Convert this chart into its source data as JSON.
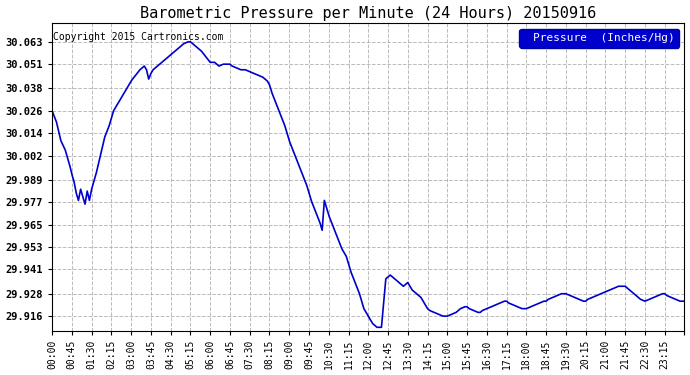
{
  "title": "Barometric Pressure per Minute (24 Hours) 20150916",
  "copyright": "Copyright 2015 Cartronics.com",
  "legend_label": "Pressure  (Inches/Hg)",
  "background_color": "#ffffff",
  "plot_bg_color": "#ffffff",
  "line_color": "#0000cc",
  "line_width": 1.2,
  "yticks": [
    29.916,
    29.928,
    29.941,
    29.953,
    29.965,
    29.977,
    29.989,
    30.002,
    30.014,
    30.026,
    30.038,
    30.051,
    30.063
  ],
  "ylim": [
    29.908,
    30.073
  ],
  "xtick_labels": [
    "00:00",
    "00:45",
    "01:30",
    "02:15",
    "03:00",
    "03:45",
    "04:30",
    "05:15",
    "06:00",
    "06:45",
    "07:30",
    "08:15",
    "09:00",
    "09:45",
    "10:30",
    "11:15",
    "12:00",
    "12:45",
    "13:30",
    "14:15",
    "15:00",
    "15:45",
    "16:30",
    "17:15",
    "18:00",
    "18:45",
    "19:30",
    "20:15",
    "21:00",
    "21:45",
    "22:30",
    "23:15"
  ],
  "num_points": 1441,
  "key_points": {
    "0": 30.026,
    "10": 30.02,
    "20": 30.01,
    "30": 30.005,
    "40": 29.997,
    "45": 29.992,
    "50": 29.988,
    "55": 29.982,
    "60": 29.978,
    "65": 29.984,
    "70": 29.98,
    "75": 29.976,
    "80": 29.983,
    "85": 29.978,
    "90": 29.984,
    "100": 29.992,
    "110": 30.002,
    "120": 30.012,
    "130": 30.018,
    "135": 30.022,
    "140": 30.026,
    "150": 30.03,
    "160": 30.034,
    "165": 30.036,
    "170": 30.038,
    "175": 30.04,
    "180": 30.042,
    "190": 30.045,
    "200": 30.048,
    "210": 30.05,
    "215": 30.048,
    "220": 30.043,
    "225": 30.046,
    "230": 30.048,
    "240": 30.05,
    "250": 30.052,
    "260": 30.054,
    "270": 30.056,
    "280": 30.058,
    "290": 30.06,
    "300": 30.062,
    "310": 30.063,
    "315": 30.063,
    "320": 30.062,
    "330": 30.06,
    "340": 30.058,
    "350": 30.055,
    "360": 30.052,
    "370": 30.052,
    "375": 30.051,
    "380": 30.05,
    "390": 30.051,
    "400": 30.051,
    "405": 30.051,
    "410": 30.05,
    "420": 30.049,
    "430": 30.048,
    "440": 30.048,
    "450": 30.047,
    "460": 30.046,
    "470": 30.045,
    "480": 30.044,
    "490": 30.042,
    "495": 30.04,
    "500": 30.036,
    "510": 30.03,
    "520": 30.024,
    "530": 30.018,
    "540": 30.01,
    "550": 30.004,
    "560": 29.998,
    "570": 29.992,
    "580": 29.986,
    "585": 29.982,
    "590": 29.978,
    "600": 29.972,
    "610": 29.966,
    "615": 29.962,
    "620": 29.978,
    "625": 29.974,
    "630": 29.97,
    "640": 29.964,
    "650": 29.958,
    "660": 29.952,
    "670": 29.948,
    "675": 29.944,
    "680": 29.94,
    "690": 29.934,
    "700": 29.928,
    "710": 29.92,
    "720": 29.916,
    "730": 29.912,
    "740": 29.91,
    "750": 29.91,
    "760": 29.936,
    "765": 29.937,
    "770": 29.938,
    "780": 29.936,
    "790": 29.934,
    "800": 29.932,
    "810": 29.934,
    "820": 29.93,
    "830": 29.928,
    "840": 29.926,
    "850": 29.922,
    "855": 29.92,
    "860": 29.919,
    "870": 29.918,
    "880": 29.917,
    "890": 29.916,
    "900": 29.916,
    "910": 29.917,
    "920": 29.918,
    "930": 29.92,
    "940": 29.921,
    "945": 29.921,
    "950": 29.92,
    "960": 29.919,
    "970": 29.918,
    "975": 29.918,
    "980": 29.919,
    "990": 29.92,
    "1000": 29.921,
    "1010": 29.922,
    "1020": 29.923,
    "1030": 29.924,
    "1035": 29.924,
    "1040": 29.923,
    "1050": 29.922,
    "1060": 29.921,
    "1070": 29.92,
    "1080": 29.92,
    "1090": 29.921,
    "1100": 29.922,
    "1110": 29.923,
    "1120": 29.924,
    "1125": 29.924,
    "1130": 29.925,
    "1140": 29.926,
    "1150": 29.927,
    "1160": 29.928,
    "1170": 29.928,
    "1180": 29.927,
    "1190": 29.926,
    "1200": 29.925,
    "1210": 29.924,
    "1215": 29.924,
    "1220": 29.925,
    "1230": 29.926,
    "1240": 29.927,
    "1250": 29.928,
    "1260": 29.929,
    "1270": 29.93,
    "1280": 29.931,
    "1290": 29.932,
    "1300": 29.932,
    "1305": 29.932,
    "1310": 29.931,
    "1320": 29.929,
    "1330": 29.927,
    "1340": 29.925,
    "1350": 29.924,
    "1360": 29.925,
    "1370": 29.926,
    "1380": 29.927,
    "1390": 29.928,
    "1395": 29.928,
    "1400": 29.927,
    "1410": 29.926,
    "1420": 29.925,
    "1430": 29.924,
    "1440": 29.924
  }
}
